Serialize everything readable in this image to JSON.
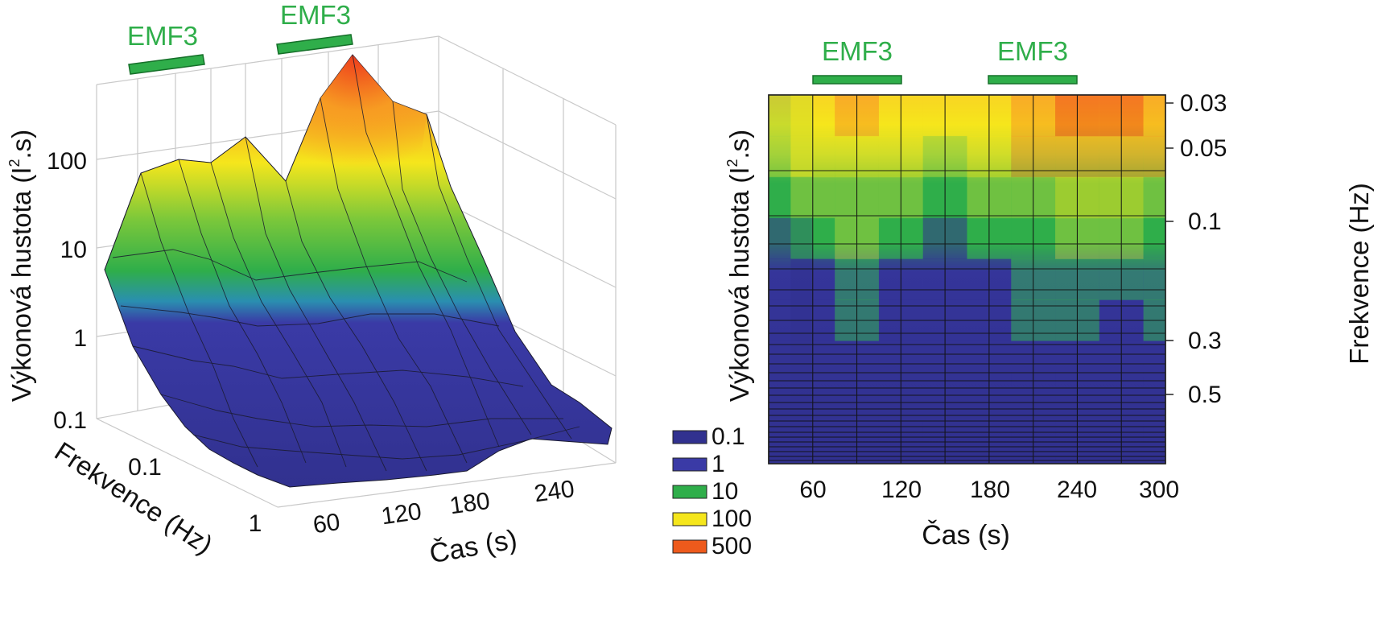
{
  "chart_data": [
    {
      "type": "surface3d",
      "title": "",
      "xlabel": "Čas (s)",
      "ylabel": "Frekvence (Hz)",
      "zlabel": "Výkonová hustota (I².s)",
      "z_scale": "log",
      "x_ticks": [
        "60",
        "120",
        "180",
        "240"
      ],
      "y_ticks": [
        "0.1",
        "1"
      ],
      "z_ticks": [
        "0.1",
        "1",
        "10",
        "100"
      ],
      "annotations": [
        "EMF3",
        "EMF3"
      ],
      "stimulus_periods_s": [
        [
          60,
          120
        ],
        [
          180,
          240
        ]
      ],
      "time_s": [
        30,
        60,
        90,
        120,
        150,
        180,
        210,
        240,
        270,
        300
      ],
      "front_ridge_power": [
        5,
        60,
        80,
        70,
        100,
        30,
        150,
        500,
        150,
        100
      ],
      "colors": {
        "0.1": "#31318f",
        "1": "#3a3aa6",
        "10": "#2fae4a",
        "100": "#f5e61c",
        "500": "#ee3a1c"
      }
    },
    {
      "type": "heatmap",
      "title": "",
      "xlabel": "Čas (s)",
      "ylabel_left": "Výkonová hustota (I².s)",
      "ylabel_right": "Frekvence (Hz)",
      "x_ticks": [
        "60",
        "120",
        "180",
        "240",
        "300"
      ],
      "y_ticks": [
        "0.03",
        "0.05",
        "0.1",
        "0.3",
        "0.5"
      ],
      "annotations": [
        "EMF3",
        "EMF3"
      ],
      "stimulus_periods_s": [
        [
          60,
          120
        ],
        [
          180,
          240
        ]
      ],
      "xlim": [
        30,
        300
      ],
      "legend": {
        "position": "bottom-left",
        "entries": [
          {
            "label": "0.1",
            "color": "#31318f"
          },
          {
            "label": "1",
            "color": "#3a3aa6"
          },
          {
            "label": "10",
            "color": "#2fae4a"
          },
          {
            "label": "100",
            "color": "#f5e61c"
          },
          {
            "label": "500",
            "color": "#ee5a1c"
          }
        ]
      },
      "x": [
        30,
        60,
        90,
        120,
        150,
        180,
        210,
        240,
        270,
        300
      ],
      "freq_rows_hz": [
        0.03,
        0.05,
        0.07,
        0.1,
        0.15,
        0.2,
        0.3,
        0.5,
        1
      ],
      "power": [
        [
          60,
          150,
          200,
          150,
          80,
          100,
          300,
          500,
          450,
          300
        ],
        [
          40,
          100,
          150,
          100,
          50,
          80,
          200,
          300,
          300,
          200
        ],
        [
          10,
          20,
          40,
          20,
          15,
          20,
          60,
          80,
          80,
          60
        ],
        [
          1,
          10,
          20,
          8,
          1,
          3,
          15,
          25,
          20,
          15
        ],
        [
          0.5,
          2,
          8,
          1,
          0.5,
          1,
          10,
          12,
          4,
          8
        ],
        [
          0.3,
          1,
          4,
          0.5,
          0.3,
          0.5,
          5,
          6,
          1,
          3
        ],
        [
          0.2,
          0.5,
          1,
          0.3,
          0.2,
          0.3,
          1,
          1,
          0.5,
          0.5
        ],
        [
          0.1,
          0.2,
          0.3,
          0.2,
          0.1,
          0.2,
          0.3,
          0.3,
          0.2,
          0.2
        ],
        [
          0.1,
          0.1,
          0.1,
          0.1,
          0.1,
          0.1,
          0.1,
          0.1,
          0.1,
          0.1
        ]
      ]
    }
  ]
}
